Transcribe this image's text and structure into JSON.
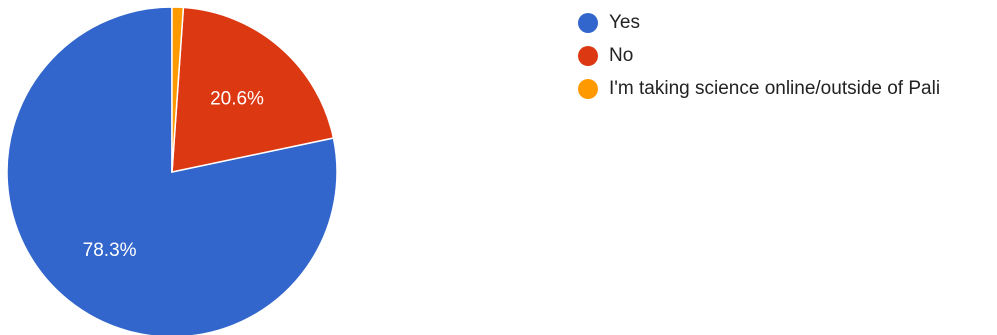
{
  "chart_data": {
    "type": "pie",
    "categories": [
      "Yes",
      "No",
      "I'm taking science online/outside of Pali"
    ],
    "values": [
      78.3,
      20.6,
      1.1
    ],
    "data_labels": [
      "78.3%",
      "20.6%",
      ""
    ],
    "colors": [
      "#3366cc",
      "#dc3912",
      "#ff9900"
    ],
    "start_angle_deg": 90,
    "direction": "counterclockwise",
    "legend_position": "right"
  },
  "legend": {
    "items": [
      {
        "label": "Yes",
        "color": "#3366cc"
      },
      {
        "label": "No",
        "color": "#dc3912"
      },
      {
        "label": "I'm taking science online/outside of Pali",
        "color": "#ff9900"
      }
    ]
  }
}
